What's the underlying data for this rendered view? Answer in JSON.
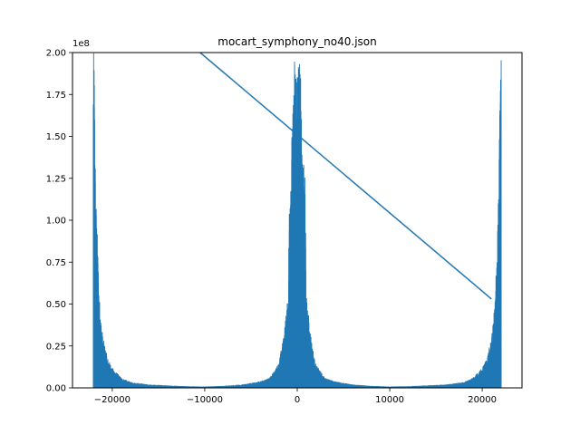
{
  "chart_data": {
    "type": "line",
    "title": "mocart_symphony_no40.json",
    "xlabel": "",
    "ylabel": "",
    "y_offset_label": "1e8",
    "xlim": [
      -24300,
      24300
    ],
    "ylim": [
      0,
      2.0
    ],
    "y_scale_multiplier": 100000000,
    "x_ticks": [
      -20000,
      -10000,
      0,
      10000,
      20000
    ],
    "x_tick_labels": [
      "−20000",
      "−10000",
      "0",
      "10000",
      "20000"
    ],
    "y_ticks": [
      0.0,
      0.25,
      0.5,
      0.75,
      1.0,
      1.25,
      1.5,
      1.75,
      2.0
    ],
    "y_tick_labels": [
      "0.00",
      "0.25",
      "0.50",
      "0.75",
      "1.00",
      "1.25",
      "1.50",
      "1.75",
      "2.00"
    ],
    "grid": false,
    "line_color": "#1f77b4",
    "series": [
      {
        "description_free": true,
        "spectrum_envelope": {
          "x": [
            -22050,
            -21950,
            -21800,
            -21600,
            -21400,
            -21200,
            -21000,
            -20500,
            -20000,
            -19000,
            -18000,
            -16000,
            -14000,
            -12000,
            -10000,
            -8000,
            -6000,
            -4000,
            -3000,
            -2500,
            -2000,
            -1500,
            -1000,
            -800,
            -500,
            -300,
            0,
            300,
            500,
            800,
            1000,
            1500,
            2000,
            2500,
            3000,
            4000,
            6000,
            8000,
            10000,
            12000,
            14000,
            16000,
            18000,
            19000,
            20000,
            20500,
            21000,
            21200,
            21400,
            21600,
            21800,
            21950,
            22050
          ],
          "y": [
            2.0,
            2.0,
            1.2,
            0.9,
            0.55,
            0.4,
            0.3,
            0.18,
            0.12,
            0.06,
            0.035,
            0.02,
            0.015,
            0.01,
            0.008,
            0.012,
            0.02,
            0.04,
            0.06,
            0.1,
            0.15,
            0.3,
            0.55,
            1.35,
            1.6,
            2.0,
            2.0,
            2.0,
            1.6,
            1.35,
            0.55,
            0.3,
            0.15,
            0.1,
            0.06,
            0.04,
            0.02,
            0.012,
            0.008,
            0.01,
            0.015,
            0.02,
            0.035,
            0.06,
            0.12,
            0.18,
            0.3,
            0.4,
            0.55,
            0.9,
            1.2,
            2.0,
            2.0
          ]
        },
        "diagonal_line": {
          "x": [
            -10500,
            21000
          ],
          "y": [
            2.0,
            0.53
          ]
        }
      }
    ]
  }
}
